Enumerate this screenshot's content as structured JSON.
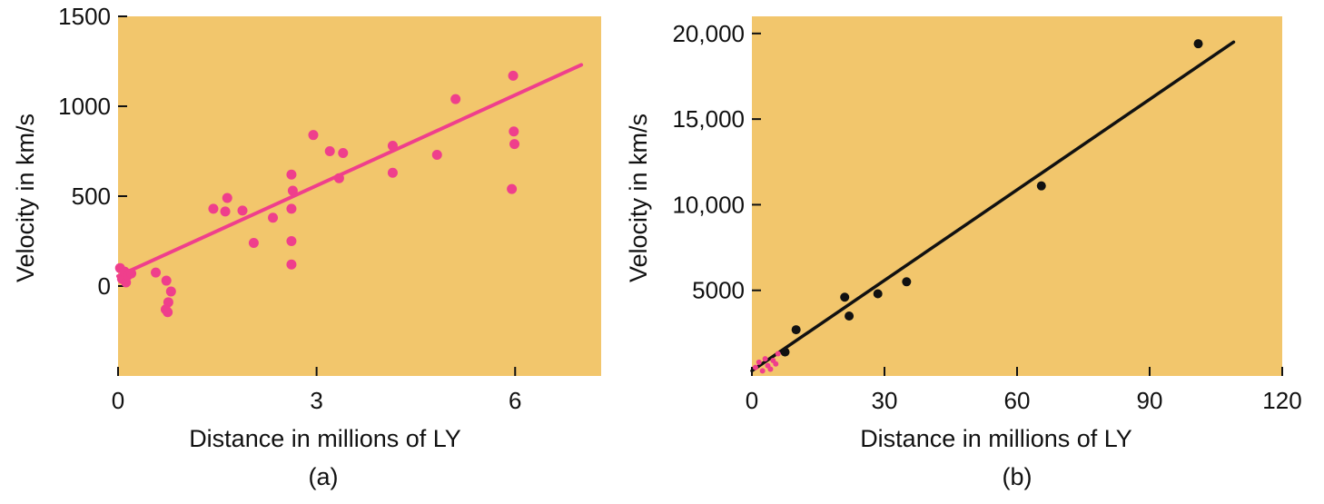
{
  "colors": {
    "plot_background": "#f2c66c",
    "panel_a_marks": "#ef3f8c",
    "panel_b_marks": "#111111",
    "axis_text": "#111111"
  },
  "chart_data": [
    {
      "type": "scatter",
      "caption": "(a)",
      "xlabel": "Distance in millions of LY",
      "ylabel": "Velocity in km/s",
      "xlim": [
        0,
        7.3
      ],
      "ylim": [
        -500,
        1500
      ],
      "x_ticks": [
        "0",
        "3",
        "6"
      ],
      "x_tick_values": [
        0,
        3,
        6
      ],
      "y_ticks": [
        "0",
        "500",
        "1000",
        "1500"
      ],
      "y_tick_values": [
        0,
        500,
        1000,
        1500
      ],
      "grid": false,
      "legend": "none",
      "points": [
        {
          "x": 0.03,
          "y": 100
        },
        {
          "x": 0.06,
          "y": 40
        },
        {
          "x": 0.1,
          "y": 80
        },
        {
          "x": 0.12,
          "y": 20
        },
        {
          "x": 0.15,
          "y": 60
        },
        {
          "x": 0.2,
          "y": 70
        },
        {
          "x": 0.57,
          "y": 75
        },
        {
          "x": 0.73,
          "y": 30
        },
        {
          "x": 0.8,
          "y": -30
        },
        {
          "x": 0.76,
          "y": -90
        },
        {
          "x": 0.72,
          "y": -130
        },
        {
          "x": 0.75,
          "y": -145
        },
        {
          "x": 1.44,
          "y": 430
        },
        {
          "x": 1.62,
          "y": 415
        },
        {
          "x": 1.65,
          "y": 490
        },
        {
          "x": 1.88,
          "y": 420
        },
        {
          "x": 2.05,
          "y": 240
        },
        {
          "x": 2.34,
          "y": 380
        },
        {
          "x": 2.62,
          "y": 620
        },
        {
          "x": 2.64,
          "y": 530
        },
        {
          "x": 2.62,
          "y": 430
        },
        {
          "x": 2.62,
          "y": 250
        },
        {
          "x": 2.62,
          "y": 120
        },
        {
          "x": 2.95,
          "y": 840
        },
        {
          "x": 3.2,
          "y": 750
        },
        {
          "x": 3.34,
          "y": 600
        },
        {
          "x": 3.4,
          "y": 740
        },
        {
          "x": 4.15,
          "y": 780
        },
        {
          "x": 4.15,
          "y": 630
        },
        {
          "x": 4.82,
          "y": 730
        },
        {
          "x": 5.1,
          "y": 1040
        },
        {
          "x": 5.97,
          "y": 1170
        },
        {
          "x": 5.98,
          "y": 860
        },
        {
          "x": 5.99,
          "y": 790
        },
        {
          "x": 5.95,
          "y": 540
        }
      ],
      "fit_line": {
        "x": [
          0,
          7.0
        ],
        "y": [
          55,
          1230
        ]
      }
    },
    {
      "type": "scatter",
      "caption": "(b)",
      "xlabel": "Distance in millions of LY",
      "ylabel": "Velocity in km/s",
      "xlim": [
        0,
        120
      ],
      "ylim": [
        0,
        21000
      ],
      "x_ticks": [
        "0",
        "30",
        "60",
        "90",
        "120"
      ],
      "x_tick_values": [
        0,
        30,
        60,
        90,
        120
      ],
      "y_ticks": [
        "5000",
        "10,000",
        "15,000",
        "20,000"
      ],
      "y_tick_values": [
        5000,
        10000,
        15000,
        20000
      ],
      "grid": false,
      "legend": "none",
      "points": [
        {
          "x": 7.5,
          "y": 1400
        },
        {
          "x": 10,
          "y": 2700
        },
        {
          "x": 21,
          "y": 4600
        },
        {
          "x": 22,
          "y": 3500
        },
        {
          "x": 28.5,
          "y": 4800
        },
        {
          "x": 35,
          "y": 5500
        },
        {
          "x": 65.5,
          "y": 11100
        },
        {
          "x": 101,
          "y": 19400
        }
      ],
      "inset_points": [
        {
          "x": 0.8,
          "y": 500
        },
        {
          "x": 1.6,
          "y": 800
        },
        {
          "x": 2.4,
          "y": 300
        },
        {
          "x": 3.0,
          "y": 1000
        },
        {
          "x": 3.6,
          "y": 600
        },
        {
          "x": 4.2,
          "y": 400
        },
        {
          "x": 4.8,
          "y": 900
        },
        {
          "x": 5.4,
          "y": 700
        },
        {
          "x": 5.9,
          "y": 1300
        }
      ],
      "fit_line": {
        "x": [
          0,
          109
        ],
        "y": [
          300,
          19500
        ]
      }
    }
  ]
}
